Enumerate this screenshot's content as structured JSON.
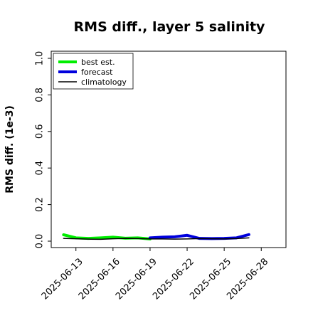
{
  "chart_data": {
    "type": "line",
    "title": "RMS diff., layer 5 salinity",
    "xlabel": "",
    "ylabel": "RMS diff. (1e-3)",
    "ylim": [
      0,
      1.0
    ],
    "xlim": [
      "2025-06-11",
      "2025-06-30"
    ],
    "yticks": [
      "0.0",
      "0.2",
      "0.4",
      "0.6",
      "0.8",
      "1.0"
    ],
    "xticks": [
      {
        "label": "2025-06-13",
        "date": "2025-06-13",
        "color": "#000000"
      },
      {
        "label": "2025-06-16",
        "date": "2025-06-16",
        "color": "#000000"
      },
      {
        "label": "2025-06-19",
        "date": "2025-06-19",
        "color": "#228B22"
      },
      {
        "label": "2025-06-22",
        "date": "2025-06-22",
        "color": "#000000"
      },
      {
        "label": "2025-06-25",
        "date": "2025-06-25",
        "color": "#000000"
      },
      {
        "label": "2025-06-28",
        "date": "2025-06-28",
        "color": "#000000"
      }
    ],
    "legend_position": "top-left",
    "series": [
      {
        "name": "best est.",
        "color": "#00ee00",
        "style": "thick",
        "x": [
          "2025-06-12",
          "2025-06-13",
          "2025-06-14",
          "2025-06-15",
          "2025-06-16",
          "2025-06-17",
          "2025-06-18",
          "2025-06-19"
        ],
        "values": [
          0.035,
          0.018,
          0.015,
          0.018,
          0.022,
          0.016,
          0.018,
          0.012
        ]
      },
      {
        "name": "forecast",
        "color": "#0000dd",
        "style": "thick",
        "x": [
          "2025-06-19",
          "2025-06-20",
          "2025-06-21",
          "2025-06-22",
          "2025-06-23",
          "2025-06-24",
          "2025-06-25",
          "2025-06-26",
          "2025-06-27"
        ],
        "values": [
          0.018,
          0.022,
          0.024,
          0.032,
          0.015,
          0.014,
          0.015,
          0.018,
          0.036
        ]
      },
      {
        "name": "climatology",
        "color": "#000000",
        "style": "thin",
        "x": [
          "2025-06-12",
          "2025-06-13",
          "2025-06-14",
          "2025-06-15",
          "2025-06-16",
          "2025-06-17",
          "2025-06-18",
          "2025-06-19",
          "2025-06-20",
          "2025-06-21",
          "2025-06-22",
          "2025-06-23",
          "2025-06-24",
          "2025-06-25",
          "2025-06-26",
          "2025-06-27"
        ],
        "values": [
          0.015,
          0.013,
          0.011,
          0.01,
          0.013,
          0.015,
          0.014,
          0.012,
          0.012,
          0.011,
          0.012,
          0.014,
          0.013,
          0.012,
          0.014,
          0.018
        ]
      }
    ]
  }
}
